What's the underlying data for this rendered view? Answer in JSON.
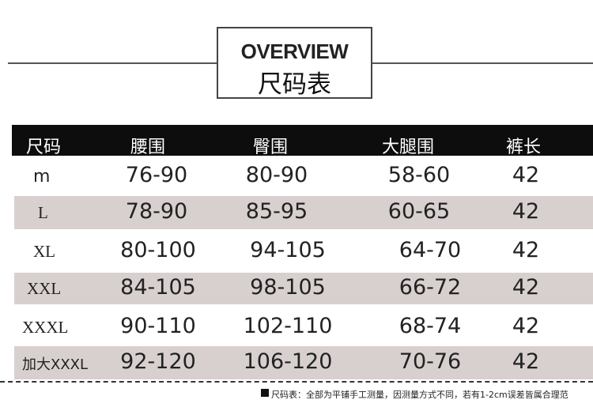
{
  "header": {
    "title": "OVERVIEW",
    "subtitle": "尺码表"
  },
  "table": {
    "columns": [
      "尺码",
      "腰围",
      "臀围",
      "大腿围",
      "裤长"
    ],
    "rows": [
      [
        "m",
        "76-90",
        "80-90",
        "58-60",
        "42"
      ],
      [
        "L",
        "78-90",
        "85-95",
        "60-65",
        "42"
      ],
      [
        "XL",
        "80-100",
        "94-105",
        "64-70",
        "42"
      ],
      [
        "XXL",
        "84-105",
        "98-105",
        "66-72",
        "42"
      ],
      [
        "XXXL",
        "90-110",
        "102-110",
        "68-74",
        "42"
      ],
      [
        "加大XXXL",
        "92-120",
        "106-120",
        "70-76",
        "42"
      ]
    ]
  },
  "footnote": "尺码表：全部为平铺手工测量，因测量方式不同，若有1-2cm误差皆属合理范"
}
